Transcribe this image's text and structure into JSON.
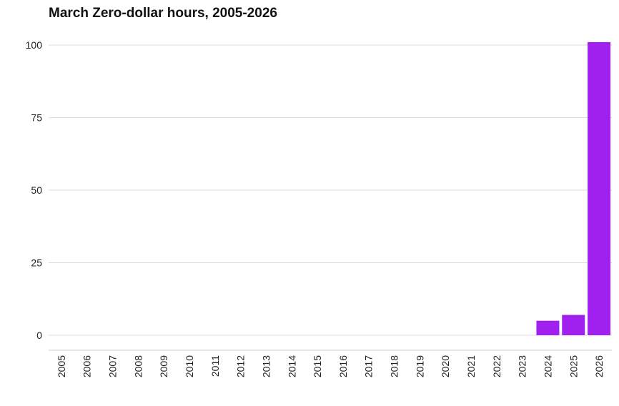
{
  "chart_data": {
    "type": "bar",
    "title": "March Zero-dollar hours, 2005-2026",
    "xlabel": "",
    "ylabel": "",
    "categories": [
      "2005",
      "2006",
      "2007",
      "2008",
      "2009",
      "2010",
      "2011",
      "2012",
      "2013",
      "2014",
      "2015",
      "2016",
      "2017",
      "2018",
      "2019",
      "2020",
      "2021",
      "2022",
      "2023",
      "2024",
      "2025",
      "2026"
    ],
    "values": [
      0,
      0,
      0,
      0,
      0,
      0,
      0,
      0,
      0,
      0,
      0,
      0,
      0,
      0,
      0,
      0,
      0,
      0,
      0,
      5,
      7,
      101
    ],
    "ylim": [
      0,
      101
    ],
    "yticks": [
      0,
      25,
      50,
      75,
      100
    ],
    "grid": true,
    "bar_color": "#a020f0",
    "grid_color": "#dddddd"
  }
}
